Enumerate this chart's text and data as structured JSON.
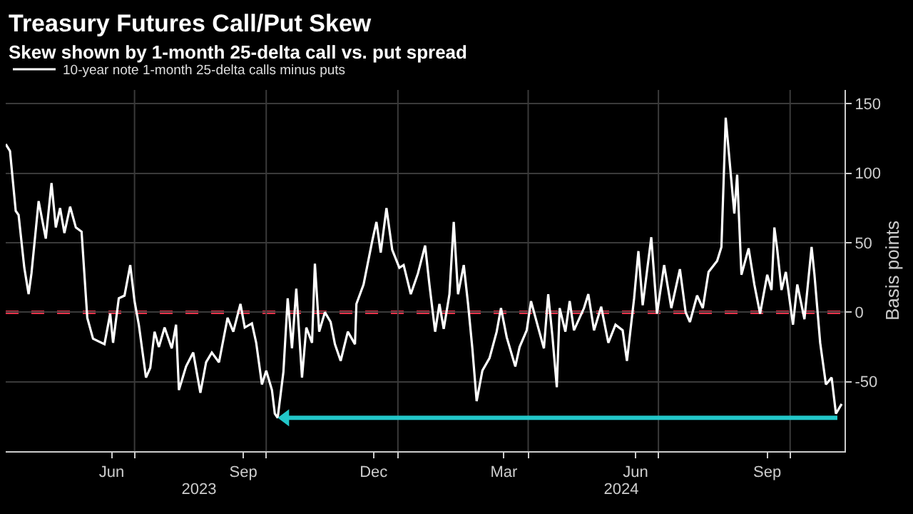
{
  "chart_data": {
    "type": "line",
    "title": "Treasury Futures Call/Put Skew",
    "subtitle": "Skew shown by 1-month 25-delta call vs. put spread",
    "ylabel": "Basis points",
    "xlim": [
      "2023-04-02",
      "2024-11-08"
    ],
    "xticks": [
      {
        "value": "2023-06-15",
        "label": "Jun"
      },
      {
        "value": "2023-07-01",
        "label": null
      },
      {
        "value": "2023-09-15",
        "label": "Sep"
      },
      {
        "value": "2023-10-01",
        "label": null
      },
      {
        "value": "2023-12-15",
        "label": "Dec"
      },
      {
        "value": "2024-01-01",
        "label": null
      },
      {
        "value": "2024-03-15",
        "label": "Mar"
      },
      {
        "value": "2024-04-01",
        "label": null
      },
      {
        "value": "2024-06-15",
        "label": "Jun"
      },
      {
        "value": "2024-07-01",
        "label": null
      },
      {
        "value": "2024-09-15",
        "label": "Sep"
      },
      {
        "value": "2024-10-01",
        "label": null
      }
    ],
    "x2lim": [
      "2023-04-02",
      "2024-11-08"
    ],
    "x2ticks": [
      {
        "value": "2023-08-15",
        "label": "2023"
      },
      {
        "value": "2024-06-05",
        "label": "2024"
      }
    ],
    "ylim": [
      -100,
      160
    ],
    "yticks": [
      -50,
      0,
      50,
      100,
      150
    ],
    "grid": true,
    "legend": "top left",
    "marker": "none",
    "line_style": "solid",
    "ref_lines": [
      {
        "axis": "y",
        "value": 0,
        "color": "#e8334a",
        "line_style": "dashed"
      }
    ],
    "series": [
      {
        "name": "10-year note 1-month 25-delta calls minus puts",
        "color": "#ffffff",
        "x": [
          "2023-04-02",
          "2023-04-05",
          "2023-04-09",
          "2023-04-11",
          "2023-04-15",
          "2023-04-18",
          "2023-04-20",
          "2023-04-25",
          "2023-04-30",
          "2023-05-04",
          "2023-05-07",
          "2023-05-10",
          "2023-05-13",
          "2023-05-17",
          "2023-05-21",
          "2023-05-25",
          "2023-05-29",
          "2023-06-02",
          "2023-06-10",
          "2023-06-14",
          "2023-06-16",
          "2023-06-20",
          "2023-06-24",
          "2023-06-28",
          "2023-07-01",
          "2023-07-04",
          "2023-07-09",
          "2023-07-12",
          "2023-07-15",
          "2023-07-18",
          "2023-07-22",
          "2023-07-27",
          "2023-07-30",
          "2023-08-01",
          "2023-08-06",
          "2023-08-11",
          "2023-08-16",
          "2023-08-20",
          "2023-08-24",
          "2023-08-29",
          "2023-09-04",
          "2023-09-08",
          "2023-09-13",
          "2023-09-16",
          "2023-09-21",
          "2023-09-24",
          "2023-09-28",
          "2023-10-01",
          "2023-10-05",
          "2023-10-07",
          "2023-10-09",
          "2023-10-13",
          "2023-10-16",
          "2023-10-19",
          "2023-10-22",
          "2023-10-26",
          "2023-10-29",
          "2023-11-02",
          "2023-11-04",
          "2023-11-07",
          "2023-11-11",
          "2023-11-15",
          "2023-11-18",
          "2023-11-22",
          "2023-11-27",
          "2023-12-02",
          "2023-12-03",
          "2023-12-08",
          "2023-12-14",
          "2023-12-17",
          "2023-12-20",
          "2023-12-24",
          "2023-12-28",
          "2024-01-02",
          "2024-01-05",
          "2024-01-10",
          "2024-01-15",
          "2024-01-20",
          "2024-01-23",
          "2024-01-27",
          "2024-01-30",
          "2024-02-02",
          "2024-02-06",
          "2024-02-09",
          "2024-02-12",
          "2024-02-16",
          "2024-02-19",
          "2024-02-22",
          "2024-02-25",
          "2024-02-29",
          "2024-03-05",
          "2024-03-10",
          "2024-03-13",
          "2024-03-17",
          "2024-03-23",
          "2024-03-26",
          "2024-03-31",
          "2024-04-03",
          "2024-04-08",
          "2024-04-12",
          "2024-04-15",
          "2024-04-18",
          "2024-04-21",
          "2024-04-23",
          "2024-04-27",
          "2024-04-30",
          "2024-05-03",
          "2024-05-10",
          "2024-05-13",
          "2024-05-17",
          "2024-05-22",
          "2024-05-27",
          "2024-06-01",
          "2024-06-06",
          "2024-06-09",
          "2024-06-14",
          "2024-06-17",
          "2024-06-20",
          "2024-06-26",
          "2024-06-30",
          "2024-07-05",
          "2024-07-10",
          "2024-07-16",
          "2024-07-20",
          "2024-07-23",
          "2024-07-28",
          "2024-08-01",
          "2024-08-05",
          "2024-08-11",
          "2024-08-14",
          "2024-08-17",
          "2024-08-21",
          "2024-08-23",
          "2024-08-25",
          "2024-08-28",
          "2024-09-02",
          "2024-09-06",
          "2024-09-10",
          "2024-09-15",
          "2024-09-18",
          "2024-09-20",
          "2024-09-22",
          "2024-09-25",
          "2024-09-28",
          "2024-10-03",
          "2024-10-06",
          "2024-10-11",
          "2024-10-16",
          "2024-10-18",
          "2024-10-22",
          "2024-10-26",
          "2024-10-30",
          "2024-11-02",
          "2024-11-06"
        ],
        "values": [
          121,
          116,
          73,
          70,
          32,
          13,
          28,
          80,
          53,
          93,
          61,
          75,
          57,
          76,
          61,
          58,
          -4,
          -19,
          -23,
          -1,
          -22,
          10,
          12,
          34,
          8,
          -9,
          -47,
          -40,
          -14,
          -25,
          -11,
          -26,
          -9,
          -56,
          -39,
          -29,
          -58,
          -36,
          -29,
          -36,
          -4,
          -14,
          6,
          -11,
          -8,
          -22,
          -52,
          -42,
          -56,
          -73,
          -76,
          -43,
          10,
          -26,
          17,
          -47,
          -11,
          -22,
          35,
          -14,
          0,
          -7,
          -23,
          -35,
          -14,
          -23,
          6,
          20,
          51,
          65,
          43,
          75,
          45,
          32,
          34,
          13,
          28,
          48,
          20,
          -14,
          6,
          -12,
          13,
          65,
          13,
          34,
          6,
          -26,
          -64,
          -42,
          -33,
          -14,
          3,
          -18,
          -39,
          -25,
          -13,
          8,
          -11,
          -26,
          13,
          -18,
          -54,
          3,
          -14,
          8,
          -13,
          3,
          13,
          -13,
          4,
          -22,
          -9,
          -13,
          -35,
          10,
          44,
          5,
          54,
          -1,
          34,
          3,
          31,
          0,
          -7,
          12,
          3,
          29,
          37,
          47,
          140,
          94,
          71,
          99,
          27,
          46,
          20,
          -1,
          27,
          16,
          61,
          45,
          16,
          29,
          -9,
          20,
          -5,
          47,
          27,
          -22,
          -52,
          -47,
          -73,
          -66
        ]
      }
    ]
  }
}
